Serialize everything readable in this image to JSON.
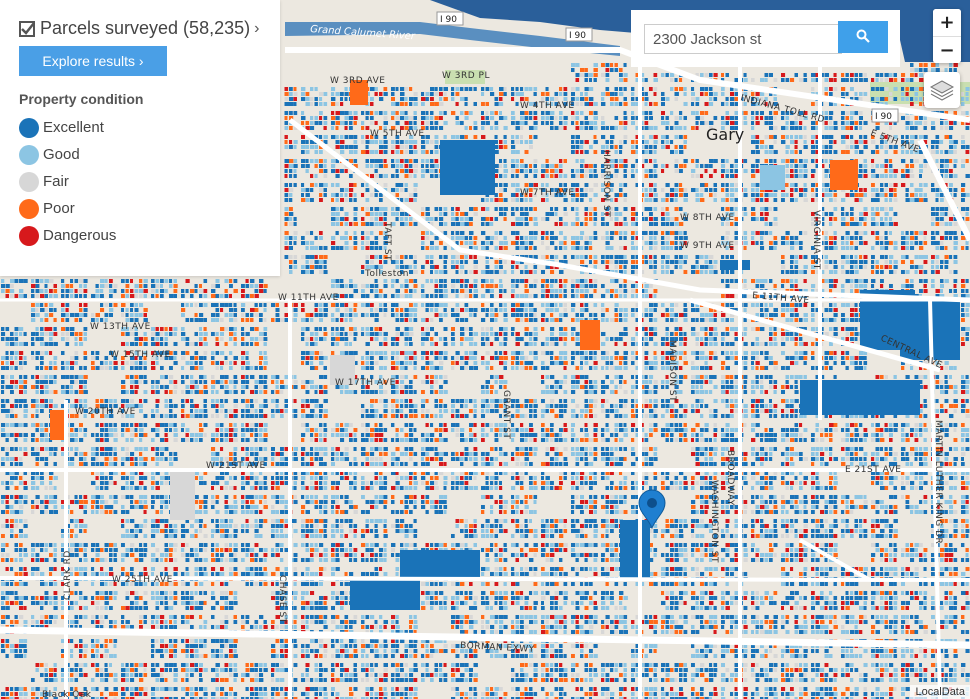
{
  "panel": {
    "title": "Parcels surveyed (58,235)",
    "explore_label": "Explore results ›",
    "legend_title": "Property condition",
    "legend": [
      {
        "label": "Excellent",
        "color": "#1a73b8"
      },
      {
        "label": "Good",
        "color": "#8cc5e3"
      },
      {
        "label": "Fair",
        "color": "#d7d7d7"
      },
      {
        "label": "Poor",
        "color": "#ff6a19"
      },
      {
        "label": "Dangerous",
        "color": "#d7191c"
      }
    ]
  },
  "search": {
    "value": "2300 Jackson st",
    "icon": "search-icon"
  },
  "zoom": {
    "in_label": "+",
    "out_label": "−"
  },
  "layers_icon": "layers-icon",
  "attribution": "LocalData",
  "map": {
    "city_label": "Gary",
    "water_label": "Grand Calumet River",
    "highway_shields": [
      "I 90",
      "I 90",
      "I 90"
    ],
    "streets": [
      "W 3RD AVE",
      "W 3RD PL",
      "W 4TH AVE",
      "INDIANA TOLL RD",
      "W 5TH AVE",
      "E 5TH AVE",
      "W 7TH AVE",
      "W 8TH AVE",
      "W 9TH AVE",
      "W 11TH AVE",
      "E 11TH AVE",
      "W 13TH AVE",
      "W 15TH AVE",
      "W 17TH AVE",
      "CENTRAL AVE",
      "W 20TH AVE",
      "W 21ST AVE",
      "E 21ST AVE",
      "W 25TH AVE",
      "BORMAN EXWY",
      "CLARK RD",
      "CHASE ST",
      "TAFT ST",
      "GRANT ST",
      "MADISON ST",
      "HARRISON ST",
      "BROADWAY",
      "WASHINGTON ST",
      "VIRGINIA ST",
      "MARTIN LUTHER KING DR",
      "Tolleston",
      "Black Oak"
    ],
    "marker_icon": "map-pin-icon"
  }
}
